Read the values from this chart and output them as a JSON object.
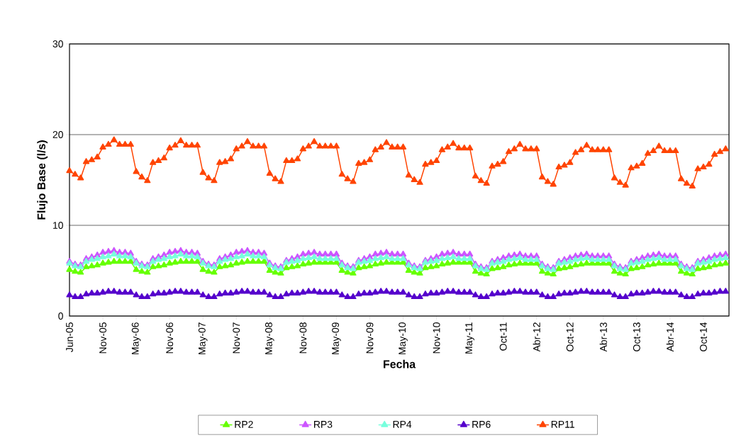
{
  "chart_data": {
    "type": "line",
    "xlabel": "Fecha",
    "ylabel": "Flujo Base (l/s)",
    "categories": [
      "Jun-05",
      null,
      null,
      null,
      null,
      null,
      "Nov-05",
      null,
      null,
      null,
      null,
      null,
      "May-06",
      null,
      null,
      null,
      null,
      null,
      "Nov-06",
      null,
      null,
      null,
      null,
      null,
      "May-07",
      null,
      null,
      null,
      null,
      null,
      "Nov-07",
      null,
      null,
      null,
      null,
      null,
      "May-08",
      null,
      null,
      null,
      null,
      null,
      "Nov-08",
      null,
      null,
      null,
      null,
      null,
      "May-09",
      null,
      null,
      null,
      null,
      null,
      "Nov-09",
      null,
      null,
      null,
      null,
      null,
      "May-10",
      null,
      null,
      null,
      null,
      null,
      "Nov-10",
      null,
      null,
      null,
      null,
      null,
      "May-11",
      null,
      null,
      null,
      null,
      null,
      "Oct-11",
      null,
      null,
      null,
      null,
      null,
      "Abr-12",
      null,
      null,
      null,
      null,
      null,
      "Oct-12",
      null,
      null,
      null,
      null,
      null,
      "Abr-13",
      null,
      null,
      null,
      null,
      null,
      "Oct-13",
      null,
      null,
      null,
      null,
      null,
      "Abr-14",
      null,
      null,
      null,
      null,
      null,
      "Oct-14",
      null,
      null,
      null,
      null
    ],
    "series": [
      {
        "name": "RP2",
        "color": "#66ff00",
        "values": [
          5.1,
          4.9,
          4.8,
          5.4,
          5.5,
          5.6,
          5.8,
          5.9,
          6.0,
          6.0,
          6.0,
          6.0,
          5.1,
          4.9,
          4.8,
          5.4,
          5.5,
          5.6,
          5.8,
          5.9,
          6.0,
          6.0,
          6.0,
          6.0,
          5.1,
          4.9,
          4.8,
          5.4,
          5.5,
          5.6,
          5.8,
          5.9,
          6.0,
          6.0,
          6.0,
          6.0,
          5.0,
          4.8,
          4.7,
          5.3,
          5.4,
          5.5,
          5.7,
          5.8,
          5.9,
          5.9,
          5.9,
          5.9,
          5.9,
          5.0,
          4.8,
          4.7,
          5.3,
          5.4,
          5.5,
          5.7,
          5.8,
          5.9,
          5.9,
          5.9,
          5.9,
          5.0,
          4.8,
          4.7,
          5.3,
          5.4,
          5.5,
          5.7,
          5.8,
          5.9,
          5.9,
          5.9,
          5.9,
          4.9,
          4.7,
          4.6,
          5.2,
          5.3,
          5.4,
          5.6,
          5.7,
          5.8,
          5.8,
          5.8,
          5.8,
          4.9,
          4.7,
          4.6,
          5.2,
          5.3,
          5.4,
          5.6,
          5.7,
          5.8,
          5.8,
          5.8,
          5.8,
          5.8,
          4.9,
          4.7,
          4.6,
          5.2,
          5.3,
          5.4,
          5.6,
          5.7,
          5.8,
          5.8,
          5.8,
          5.8,
          4.9,
          4.7,
          4.6,
          5.2,
          5.3,
          5.4,
          5.6,
          5.7,
          5.8
        ]
      },
      {
        "name": "RP3",
        "color": "#cc55ff",
        "values": [
          6.0,
          5.7,
          5.6,
          6.3,
          6.5,
          6.7,
          7.0,
          7.1,
          7.2,
          7.0,
          7.0,
          6.9,
          6.0,
          5.7,
          5.6,
          6.3,
          6.5,
          6.7,
          7.0,
          7.1,
          7.2,
          7.0,
          7.0,
          6.9,
          6.0,
          5.7,
          5.6,
          6.3,
          6.5,
          6.7,
          7.0,
          7.1,
          7.2,
          7.0,
          7.0,
          6.9,
          5.8,
          5.5,
          5.4,
          6.1,
          6.3,
          6.5,
          6.8,
          6.9,
          7.0,
          6.8,
          6.8,
          6.8,
          6.8,
          5.8,
          5.5,
          5.4,
          6.1,
          6.3,
          6.5,
          6.8,
          6.9,
          7.0,
          6.8,
          6.8,
          6.8,
          5.8,
          5.5,
          5.4,
          6.1,
          6.3,
          6.5,
          6.8,
          6.9,
          7.0,
          6.8,
          6.8,
          6.8,
          5.7,
          5.4,
          5.3,
          6.0,
          6.2,
          6.4,
          6.6,
          6.7,
          6.8,
          6.6,
          6.6,
          6.6,
          5.7,
          5.4,
          5.3,
          6.0,
          6.2,
          6.4,
          6.6,
          6.7,
          6.8,
          6.6,
          6.6,
          6.6,
          6.6,
          5.7,
          5.4,
          5.3,
          6.0,
          6.2,
          6.4,
          6.6,
          6.7,
          6.8,
          6.6,
          6.6,
          6.6,
          5.7,
          5.4,
          5.3,
          6.0,
          6.2,
          6.4,
          6.6,
          6.7,
          6.8
        ]
      },
      {
        "name": "RP4",
        "color": "#77ffdd",
        "values": [
          5.8,
          5.5,
          5.4,
          6.0,
          6.2,
          6.3,
          6.5,
          6.6,
          6.8,
          6.6,
          6.6,
          6.5,
          5.8,
          5.5,
          5.4,
          6.0,
          6.2,
          6.3,
          6.5,
          6.6,
          6.8,
          6.6,
          6.6,
          6.5,
          5.8,
          5.5,
          5.4,
          6.0,
          6.2,
          6.3,
          6.5,
          6.6,
          6.8,
          6.6,
          6.6,
          6.5,
          5.6,
          5.3,
          5.2,
          5.9,
          6.0,
          6.1,
          6.3,
          6.4,
          6.5,
          6.3,
          6.3,
          6.3,
          6.3,
          5.6,
          5.3,
          5.2,
          5.9,
          6.0,
          6.1,
          6.3,
          6.4,
          6.5,
          6.3,
          6.3,
          6.3,
          5.6,
          5.3,
          5.2,
          5.9,
          6.0,
          6.1,
          6.3,
          6.4,
          6.5,
          6.3,
          6.3,
          6.3,
          5.5,
          5.2,
          5.1,
          5.8,
          5.9,
          6.0,
          6.2,
          6.3,
          6.4,
          6.2,
          6.2,
          6.2,
          5.5,
          5.2,
          5.1,
          5.8,
          5.9,
          6.0,
          6.2,
          6.3,
          6.4,
          6.2,
          6.2,
          6.2,
          6.2,
          5.5,
          5.2,
          5.1,
          5.8,
          5.9,
          6.0,
          6.2,
          6.3,
          6.4,
          6.2,
          6.2,
          6.2,
          5.5,
          5.2,
          5.1,
          5.8,
          5.9,
          6.0,
          6.2,
          6.3,
          6.4
        ]
      },
      {
        "name": "RP6",
        "color": "#5500cc",
        "values": [
          2.3,
          2.1,
          2.1,
          2.4,
          2.5,
          2.5,
          2.6,
          2.7,
          2.7,
          2.6,
          2.6,
          2.6,
          2.3,
          2.1,
          2.1,
          2.4,
          2.5,
          2.5,
          2.6,
          2.7,
          2.7,
          2.6,
          2.6,
          2.6,
          2.3,
          2.1,
          2.1,
          2.4,
          2.5,
          2.5,
          2.6,
          2.7,
          2.7,
          2.6,
          2.6,
          2.6,
          2.3,
          2.1,
          2.1,
          2.4,
          2.5,
          2.5,
          2.6,
          2.7,
          2.7,
          2.6,
          2.6,
          2.6,
          2.6,
          2.3,
          2.1,
          2.1,
          2.4,
          2.5,
          2.5,
          2.6,
          2.7,
          2.7,
          2.6,
          2.6,
          2.6,
          2.3,
          2.1,
          2.1,
          2.4,
          2.5,
          2.5,
          2.6,
          2.7,
          2.7,
          2.6,
          2.6,
          2.6,
          2.3,
          2.1,
          2.1,
          2.4,
          2.5,
          2.5,
          2.6,
          2.7,
          2.7,
          2.6,
          2.6,
          2.6,
          2.3,
          2.1,
          2.1,
          2.4,
          2.5,
          2.5,
          2.6,
          2.7,
          2.7,
          2.6,
          2.6,
          2.6,
          2.6,
          2.3,
          2.1,
          2.1,
          2.4,
          2.5,
          2.5,
          2.6,
          2.7,
          2.7,
          2.6,
          2.6,
          2.6,
          2.3,
          2.1,
          2.1,
          2.4,
          2.5,
          2.5,
          2.6,
          2.7,
          2.7
        ]
      },
      {
        "name": "RP11",
        "color": "#ff4400",
        "values": [
          16.0,
          15.6,
          15.2,
          17.0,
          17.2,
          17.5,
          18.6,
          18.9,
          19.4,
          18.9,
          18.9,
          18.9,
          15.9,
          15.3,
          14.9,
          16.9,
          17.1,
          17.4,
          18.5,
          18.8,
          19.3,
          18.8,
          18.8,
          18.8,
          15.8,
          15.2,
          14.9,
          16.9,
          17.0,
          17.3,
          18.4,
          18.7,
          19.2,
          18.7,
          18.7,
          18.7,
          15.7,
          15.1,
          14.8,
          17.1,
          17.1,
          17.3,
          18.4,
          18.7,
          19.2,
          18.7,
          18.7,
          18.7,
          18.7,
          15.6,
          15.1,
          14.8,
          16.8,
          16.9,
          17.2,
          18.3,
          18.6,
          19.1,
          18.6,
          18.6,
          18.6,
          15.5,
          15.0,
          14.7,
          16.7,
          16.9,
          17.1,
          18.3,
          18.6,
          19.0,
          18.5,
          18.5,
          18.5,
          15.4,
          14.9,
          14.6,
          16.5,
          16.7,
          17.0,
          18.1,
          18.4,
          18.9,
          18.4,
          18.4,
          18.4,
          15.3,
          14.8,
          14.5,
          16.4,
          16.6,
          16.9,
          18.0,
          18.3,
          18.8,
          18.3,
          18.3,
          18.3,
          18.3,
          15.2,
          14.7,
          14.4,
          16.3,
          16.5,
          16.8,
          17.9,
          18.2,
          18.7,
          18.2,
          18.2,
          18.2,
          15.1,
          14.6,
          14.3,
          16.2,
          16.4,
          16.7,
          17.8,
          18.1,
          18.4
        ]
      }
    ],
    "ylim": [
      0,
      30
    ],
    "yticks": [
      0,
      10,
      20,
      30
    ],
    "grid": "y",
    "legend": "bottom",
    "marker": "triangle",
    "line_style": "solid"
  }
}
